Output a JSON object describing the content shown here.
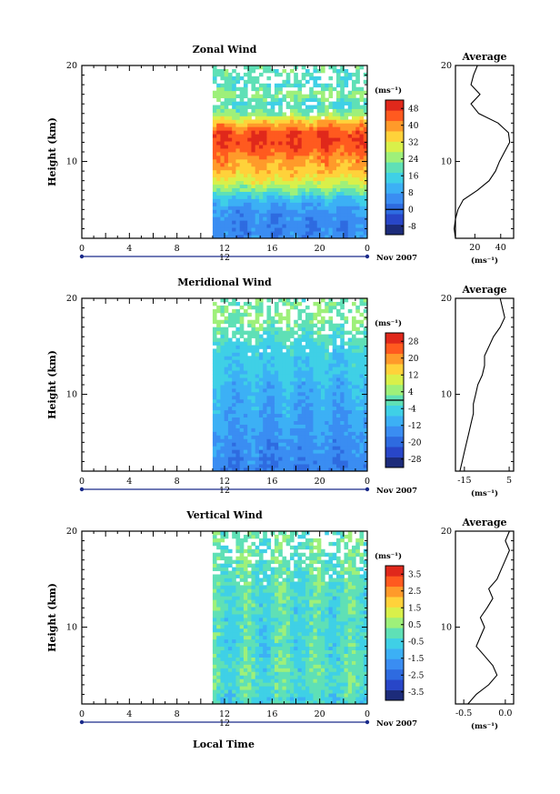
{
  "figure_xlabel": "Local Time",
  "colors": {
    "colormap": [
      "#1c2b7a",
      "#2846c8",
      "#2e6be0",
      "#3a8df2",
      "#3cb0f5",
      "#3fd0e6",
      "#5fe0b6",
      "#9ef07a",
      "#d9f04a",
      "#ffd23a",
      "#ff9a2a",
      "#ff5a1f",
      "#e0281b"
    ],
    "contour": "#000000",
    "missing": "#ffffff"
  },
  "chart_data": [
    {
      "type": "heatmap",
      "name": "zonal",
      "title": "Zonal Wind",
      "ylabel": "Height (km)",
      "xticks": [
        "0",
        "4",
        "8",
        "12",
        "16",
        "20",
        "0"
      ],
      "yticks": [
        "10",
        "20"
      ],
      "ylim_km": [
        2,
        20
      ],
      "data_time_range": [
        11,
        24
      ],
      "date_center_label": "12",
      "date_right_label": "Nov 2007",
      "colorbar": {
        "units": "(ms⁻¹)",
        "ticks": [
          "48",
          "40",
          "32",
          "24",
          "16",
          "8",
          "0",
          "-8"
        ],
        "range": [
          -12,
          52
        ],
        "line_at": "0"
      },
      "profile": {
        "title": "Average",
        "xticks": [
          "20",
          "40"
        ],
        "xlim": [
          5,
          50
        ],
        "xlabel": "(ms⁻¹)",
        "yticks": [
          "10",
          "20"
        ],
        "height_km": [
          2,
          3,
          4,
          5,
          6,
          7,
          8,
          9,
          10,
          11,
          12,
          13,
          14,
          15,
          16,
          17,
          18,
          19,
          20
        ],
        "values": [
          5,
          4,
          5,
          7,
          11,
          22,
          31,
          36,
          39,
          43,
          47,
          46,
          38,
          23,
          17,
          24,
          17,
          19,
          22
        ]
      }
    },
    {
      "type": "heatmap",
      "name": "meridional",
      "title": "Meridional Wind",
      "ylabel": "Height (km)",
      "xticks": [
        "0",
        "4",
        "8",
        "12",
        "16",
        "20",
        "0"
      ],
      "yticks": [
        "10",
        "20"
      ],
      "ylim_km": [
        2,
        20
      ],
      "data_time_range": [
        11,
        24
      ],
      "date_center_label": "12",
      "date_right_label": "Nov 2007",
      "colorbar": {
        "units": "(ms⁻¹)",
        "ticks": [
          "28",
          "20",
          "12",
          "4",
          "-4",
          "-12",
          "-20",
          "-28"
        ],
        "range": [
          -32,
          32
        ],
        "line_at": "0"
      },
      "profile": {
        "title": "Average",
        "xticks": [
          "-15",
          "5"
        ],
        "xlim": [
          -19,
          7
        ],
        "xlabel": "(ms⁻¹)",
        "yticks": [
          "10",
          "20"
        ],
        "height_km": [
          2,
          3,
          4,
          5,
          6,
          7,
          8,
          9,
          10,
          11,
          12,
          13,
          14,
          15,
          16,
          17,
          18,
          19,
          20
        ],
        "values": [
          -17,
          -16,
          -15,
          -14,
          -13,
          -12,
          -11,
          -11,
          -10,
          -9,
          -7,
          -6,
          -6,
          -4,
          -2,
          1,
          3,
          2,
          1
        ]
      }
    },
    {
      "type": "heatmap",
      "name": "vertical",
      "title": "Vertical Wind",
      "ylabel": "Height (km)",
      "xticks": [
        "0",
        "4",
        "8",
        "12",
        "16",
        "20",
        "0"
      ],
      "yticks": [
        "10",
        "20"
      ],
      "ylim_km": [
        2,
        20
      ],
      "data_time_range": [
        11,
        24
      ],
      "date_center_label": "12",
      "date_right_label": "Nov 2007",
      "colorbar": {
        "units": "(ms⁻¹)",
        "ticks": [
          "3.5",
          "2.5",
          "1.5",
          "0.5",
          "-0.5",
          "-1.5",
          "-2.5",
          "-3.5"
        ],
        "range": [
          -4,
          4
        ],
        "line_at": ""
      },
      "profile": {
        "title": "Average",
        "xticks": [
          "-0.5",
          "0.0"
        ],
        "xlim": [
          -0.6,
          0.1
        ],
        "xlabel": "(ms⁻¹)",
        "yticks": [
          "10",
          "20"
        ],
        "height_km": [
          2,
          3,
          4,
          5,
          6,
          7,
          8,
          9,
          10,
          11,
          12,
          13,
          14,
          15,
          16,
          17,
          18,
          19,
          20
        ],
        "values": [
          -0.45,
          -0.35,
          -0.2,
          -0.1,
          -0.15,
          -0.25,
          -0.35,
          -0.3,
          -0.25,
          -0.3,
          -0.22,
          -0.15,
          -0.2,
          -0.1,
          -0.05,
          0.0,
          0.05,
          0.0,
          0.05
        ]
      }
    }
  ]
}
